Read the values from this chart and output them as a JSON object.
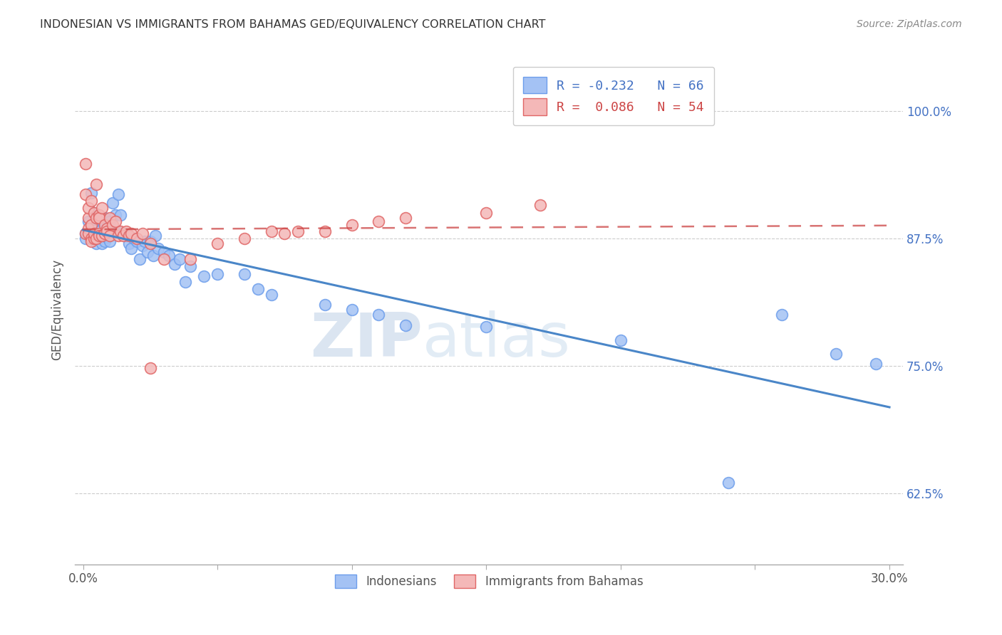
{
  "title": "INDONESIAN VS IMMIGRANTS FROM BAHAMAS GED/EQUIVALENCY CORRELATION CHART",
  "source": "Source: ZipAtlas.com",
  "ylabel": "GED/Equivalency",
  "yticks": [
    "62.5%",
    "75.0%",
    "87.5%",
    "100.0%"
  ],
  "ytick_vals": [
    0.625,
    0.75,
    0.875,
    1.0
  ],
  "xlim": [
    -0.003,
    0.305
  ],
  "ylim": [
    0.555,
    1.055
  ],
  "legend_r1": "R = -0.232",
  "legend_n1": "N = 66",
  "legend_r2": "R =  0.086",
  "legend_n2": "N = 54",
  "blue_color": "#a4c2f4",
  "pink_color": "#f4b8b8",
  "blue_edge_color": "#6d9eeb",
  "pink_edge_color": "#e06666",
  "blue_line_color": "#4a86c8",
  "pink_line_color": "#cc4444",
  "watermark_zip": "ZIP",
  "watermark_atlas": "atlas",
  "indonesian_x": [
    0.001,
    0.001,
    0.002,
    0.002,
    0.003,
    0.003,
    0.004,
    0.004,
    0.005,
    0.005,
    0.005,
    0.006,
    0.006,
    0.007,
    0.007,
    0.007,
    0.008,
    0.008,
    0.008,
    0.009,
    0.009,
    0.01,
    0.01,
    0.01,
    0.011,
    0.011,
    0.012,
    0.012,
    0.013,
    0.013,
    0.014,
    0.015,
    0.016,
    0.017,
    0.018,
    0.019,
    0.02,
    0.021,
    0.022,
    0.023,
    0.024,
    0.025,
    0.026,
    0.027,
    0.028,
    0.03,
    0.032,
    0.034,
    0.036,
    0.038,
    0.04,
    0.045,
    0.05,
    0.06,
    0.065,
    0.07,
    0.09,
    0.1,
    0.11,
    0.12,
    0.15,
    0.2,
    0.24,
    0.26,
    0.28,
    0.295
  ],
  "indonesian_y": [
    0.88,
    0.875,
    0.892,
    0.88,
    0.92,
    0.878,
    0.9,
    0.875,
    0.893,
    0.878,
    0.87,
    0.893,
    0.882,
    0.893,
    0.878,
    0.87,
    0.895,
    0.878,
    0.872,
    0.888,
    0.876,
    0.892,
    0.882,
    0.872,
    0.91,
    0.882,
    0.898,
    0.882,
    0.918,
    0.882,
    0.898,
    0.88,
    0.878,
    0.87,
    0.865,
    0.875,
    0.872,
    0.855,
    0.868,
    0.872,
    0.862,
    0.872,
    0.858,
    0.878,
    0.865,
    0.862,
    0.858,
    0.85,
    0.855,
    0.832,
    0.848,
    0.838,
    0.84,
    0.84,
    0.825,
    0.82,
    0.81,
    0.805,
    0.8,
    0.79,
    0.788,
    0.775,
    0.635,
    0.8,
    0.762,
    0.752
  ],
  "bahamas_x": [
    0.001,
    0.001,
    0.001,
    0.002,
    0.002,
    0.002,
    0.002,
    0.003,
    0.003,
    0.003,
    0.003,
    0.004,
    0.004,
    0.004,
    0.005,
    0.005,
    0.005,
    0.006,
    0.006,
    0.006,
    0.006,
    0.007,
    0.007,
    0.008,
    0.008,
    0.009,
    0.009,
    0.01,
    0.01,
    0.011,
    0.012,
    0.013,
    0.014,
    0.015,
    0.016,
    0.017,
    0.018,
    0.02,
    0.022,
    0.025,
    0.03,
    0.04,
    0.05,
    0.06,
    0.07,
    0.075,
    0.08,
    0.09,
    0.1,
    0.11,
    0.12,
    0.15,
    0.17,
    0.025
  ],
  "bahamas_y": [
    0.948,
    0.918,
    0.88,
    0.895,
    0.885,
    0.88,
    0.905,
    0.888,
    0.875,
    0.872,
    0.912,
    0.875,
    0.9,
    0.88,
    0.895,
    0.928,
    0.875,
    0.88,
    0.898,
    0.878,
    0.895,
    0.878,
    0.905,
    0.88,
    0.888,
    0.885,
    0.882,
    0.895,
    0.878,
    0.888,
    0.892,
    0.878,
    0.882,
    0.878,
    0.882,
    0.878,
    0.88,
    0.875,
    0.88,
    0.87,
    0.855,
    0.855,
    0.87,
    0.875,
    0.882,
    0.88,
    0.882,
    0.882,
    0.888,
    0.892,
    0.895,
    0.9,
    0.908,
    0.748
  ]
}
